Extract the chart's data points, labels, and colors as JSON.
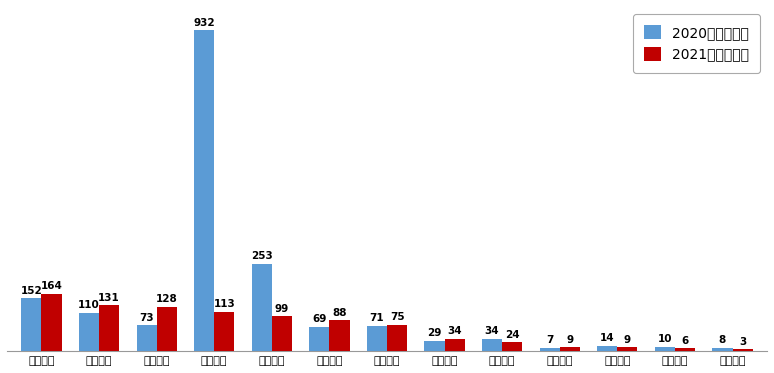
{
  "categories": [
    "招商银行",
    "光大银行",
    "兴业银行",
    "浦发银行",
    "平安银行",
    "中信银行",
    "民生银行",
    "广发银行",
    "华夏银行",
    "恒丰银行",
    "渤海银行",
    "浙商银行",
    "百信银行"
  ],
  "values_2020": [
    152,
    110,
    73,
    932,
    253,
    69,
    71,
    29,
    34,
    7,
    14,
    10,
    8
  ],
  "values_2021": [
    164,
    131,
    128,
    113,
    99,
    88,
    75,
    34,
    24,
    9,
    9,
    6,
    3
  ],
  "color_2020": "#5B9BD5",
  "color_2021": "#C00000",
  "legend_2020": "2020年第三季度",
  "legend_2021": "2021年第三季度",
  "ylim": [
    0,
    1000
  ],
  "bar_width": 0.35,
  "label_fontsize": 7.5,
  "tick_fontsize": 8,
  "legend_fontsize": 10,
  "background_color": "#FFFFFF",
  "border_color": "#AAAAAA"
}
